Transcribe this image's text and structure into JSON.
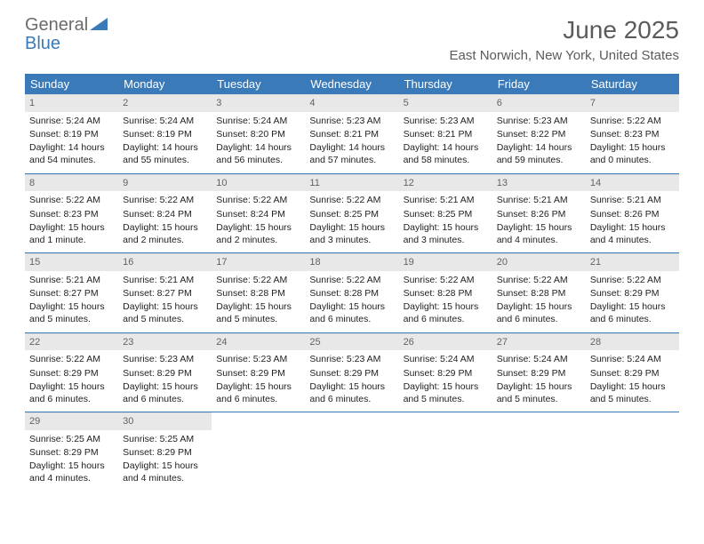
{
  "logo": {
    "text_general": "General",
    "text_blue": "Blue",
    "triangle_color": "#3a7ab8"
  },
  "header": {
    "month_title": "June 2025",
    "location": "East Norwich, New York, United States"
  },
  "calendar": {
    "header_bg": "#3a7ab8",
    "header_fg": "#ffffff",
    "daynum_bg": "#e8e8e8",
    "border_color": "#3a7ab8",
    "day_names": [
      "Sunday",
      "Monday",
      "Tuesday",
      "Wednesday",
      "Thursday",
      "Friday",
      "Saturday"
    ],
    "weeks": [
      [
        {
          "n": "1",
          "sunrise": "Sunrise: 5:24 AM",
          "sunset": "Sunset: 8:19 PM",
          "daylight": "Daylight: 14 hours and 54 minutes."
        },
        {
          "n": "2",
          "sunrise": "Sunrise: 5:24 AM",
          "sunset": "Sunset: 8:19 PM",
          "daylight": "Daylight: 14 hours and 55 minutes."
        },
        {
          "n": "3",
          "sunrise": "Sunrise: 5:24 AM",
          "sunset": "Sunset: 8:20 PM",
          "daylight": "Daylight: 14 hours and 56 minutes."
        },
        {
          "n": "4",
          "sunrise": "Sunrise: 5:23 AM",
          "sunset": "Sunset: 8:21 PM",
          "daylight": "Daylight: 14 hours and 57 minutes."
        },
        {
          "n": "5",
          "sunrise": "Sunrise: 5:23 AM",
          "sunset": "Sunset: 8:21 PM",
          "daylight": "Daylight: 14 hours and 58 minutes."
        },
        {
          "n": "6",
          "sunrise": "Sunrise: 5:23 AM",
          "sunset": "Sunset: 8:22 PM",
          "daylight": "Daylight: 14 hours and 59 minutes."
        },
        {
          "n": "7",
          "sunrise": "Sunrise: 5:22 AM",
          "sunset": "Sunset: 8:23 PM",
          "daylight": "Daylight: 15 hours and 0 minutes."
        }
      ],
      [
        {
          "n": "8",
          "sunrise": "Sunrise: 5:22 AM",
          "sunset": "Sunset: 8:23 PM",
          "daylight": "Daylight: 15 hours and 1 minute."
        },
        {
          "n": "9",
          "sunrise": "Sunrise: 5:22 AM",
          "sunset": "Sunset: 8:24 PM",
          "daylight": "Daylight: 15 hours and 2 minutes."
        },
        {
          "n": "10",
          "sunrise": "Sunrise: 5:22 AM",
          "sunset": "Sunset: 8:24 PM",
          "daylight": "Daylight: 15 hours and 2 minutes."
        },
        {
          "n": "11",
          "sunrise": "Sunrise: 5:22 AM",
          "sunset": "Sunset: 8:25 PM",
          "daylight": "Daylight: 15 hours and 3 minutes."
        },
        {
          "n": "12",
          "sunrise": "Sunrise: 5:21 AM",
          "sunset": "Sunset: 8:25 PM",
          "daylight": "Daylight: 15 hours and 3 minutes."
        },
        {
          "n": "13",
          "sunrise": "Sunrise: 5:21 AM",
          "sunset": "Sunset: 8:26 PM",
          "daylight": "Daylight: 15 hours and 4 minutes."
        },
        {
          "n": "14",
          "sunrise": "Sunrise: 5:21 AM",
          "sunset": "Sunset: 8:26 PM",
          "daylight": "Daylight: 15 hours and 4 minutes."
        }
      ],
      [
        {
          "n": "15",
          "sunrise": "Sunrise: 5:21 AM",
          "sunset": "Sunset: 8:27 PM",
          "daylight": "Daylight: 15 hours and 5 minutes."
        },
        {
          "n": "16",
          "sunrise": "Sunrise: 5:21 AM",
          "sunset": "Sunset: 8:27 PM",
          "daylight": "Daylight: 15 hours and 5 minutes."
        },
        {
          "n": "17",
          "sunrise": "Sunrise: 5:22 AM",
          "sunset": "Sunset: 8:28 PM",
          "daylight": "Daylight: 15 hours and 5 minutes."
        },
        {
          "n": "18",
          "sunrise": "Sunrise: 5:22 AM",
          "sunset": "Sunset: 8:28 PM",
          "daylight": "Daylight: 15 hours and 6 minutes."
        },
        {
          "n": "19",
          "sunrise": "Sunrise: 5:22 AM",
          "sunset": "Sunset: 8:28 PM",
          "daylight": "Daylight: 15 hours and 6 minutes."
        },
        {
          "n": "20",
          "sunrise": "Sunrise: 5:22 AM",
          "sunset": "Sunset: 8:28 PM",
          "daylight": "Daylight: 15 hours and 6 minutes."
        },
        {
          "n": "21",
          "sunrise": "Sunrise: 5:22 AM",
          "sunset": "Sunset: 8:29 PM",
          "daylight": "Daylight: 15 hours and 6 minutes."
        }
      ],
      [
        {
          "n": "22",
          "sunrise": "Sunrise: 5:22 AM",
          "sunset": "Sunset: 8:29 PM",
          "daylight": "Daylight: 15 hours and 6 minutes."
        },
        {
          "n": "23",
          "sunrise": "Sunrise: 5:23 AM",
          "sunset": "Sunset: 8:29 PM",
          "daylight": "Daylight: 15 hours and 6 minutes."
        },
        {
          "n": "24",
          "sunrise": "Sunrise: 5:23 AM",
          "sunset": "Sunset: 8:29 PM",
          "daylight": "Daylight: 15 hours and 6 minutes."
        },
        {
          "n": "25",
          "sunrise": "Sunrise: 5:23 AM",
          "sunset": "Sunset: 8:29 PM",
          "daylight": "Daylight: 15 hours and 6 minutes."
        },
        {
          "n": "26",
          "sunrise": "Sunrise: 5:24 AM",
          "sunset": "Sunset: 8:29 PM",
          "daylight": "Daylight: 15 hours and 5 minutes."
        },
        {
          "n": "27",
          "sunrise": "Sunrise: 5:24 AM",
          "sunset": "Sunset: 8:29 PM",
          "daylight": "Daylight: 15 hours and 5 minutes."
        },
        {
          "n": "28",
          "sunrise": "Sunrise: 5:24 AM",
          "sunset": "Sunset: 8:29 PM",
          "daylight": "Daylight: 15 hours and 5 minutes."
        }
      ],
      [
        {
          "n": "29",
          "sunrise": "Sunrise: 5:25 AM",
          "sunset": "Sunset: 8:29 PM",
          "daylight": "Daylight: 15 hours and 4 minutes."
        },
        {
          "n": "30",
          "sunrise": "Sunrise: 5:25 AM",
          "sunset": "Sunset: 8:29 PM",
          "daylight": "Daylight: 15 hours and 4 minutes."
        },
        null,
        null,
        null,
        null,
        null
      ]
    ]
  }
}
